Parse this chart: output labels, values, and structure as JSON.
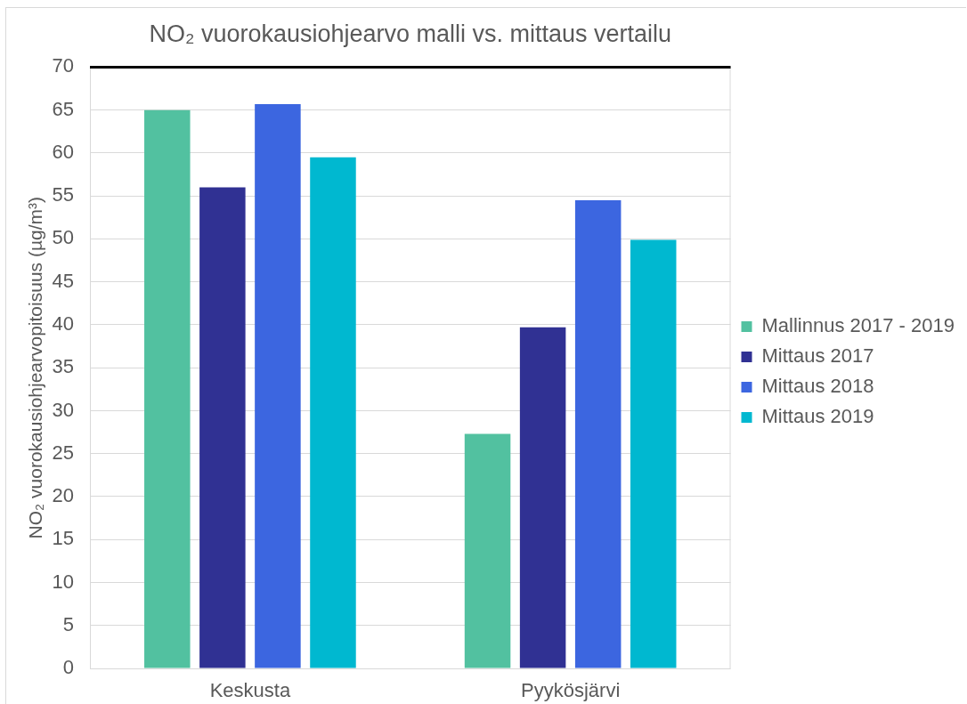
{
  "chart_data": {
    "type": "bar",
    "title": "NO₂ vuorokausiohjearvo malli vs. mittaus vertailu",
    "ylabel": "NO₂ vuorokausiohjearvopitoisuus (µg/m³)",
    "categories": [
      "Keskusta",
      "Pyykösjärvi"
    ],
    "series": [
      {
        "name": "Mallinnus 2017 - 2019",
        "color": "#52c1a0",
        "values": [
          65.0,
          27.3
        ]
      },
      {
        "name": "Mittaus 2017",
        "color": "#303193",
        "values": [
          56.0,
          39.7
        ]
      },
      {
        "name": "Mittaus 2018",
        "color": "#3c66e0",
        "values": [
          65.7,
          54.5
        ]
      },
      {
        "name": "Mittaus 2019",
        "color": "#00b8d0",
        "values": [
          59.5,
          49.9
        ]
      }
    ],
    "ylim": [
      0,
      70
    ],
    "yticks": [
      0,
      5,
      10,
      15,
      20,
      25,
      30,
      35,
      40,
      45,
      50,
      55,
      60,
      65,
      70
    ],
    "ref_lines": [
      {
        "axis": "y",
        "value": 70,
        "color": "#000000"
      }
    ],
    "grid": "y",
    "legend": "right"
  }
}
